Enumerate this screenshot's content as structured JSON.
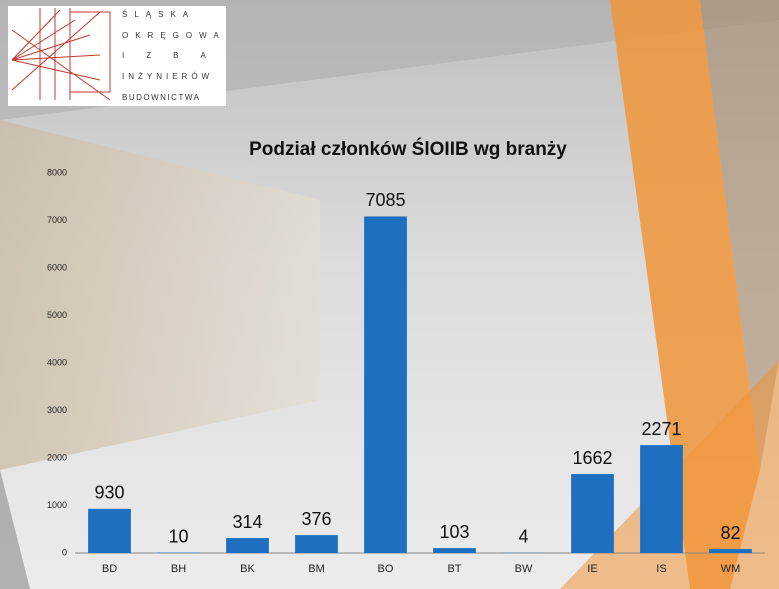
{
  "logo": {
    "lines": [
      "ŚLĄSKA",
      "OKRĘGOWA",
      "IZBA",
      "INŻYNIERÓW",
      "BUDOWNICTWA"
    ]
  },
  "chart_data": {
    "type": "bar",
    "title": "Podział członków ŚlOIIB wg branży",
    "categories": [
      "BD",
      "BH",
      "BK",
      "BM",
      "BO",
      "BT",
      "BW",
      "IE",
      "IS",
      "WM"
    ],
    "values": [
      930,
      10,
      314,
      376,
      7085,
      103,
      4,
      1662,
      2271,
      82
    ],
    "color": "#1f6fc0",
    "ylim": [
      0,
      8000
    ],
    "yticks": [
      0,
      1000,
      2000,
      3000,
      4000,
      5000,
      6000,
      7000,
      8000
    ],
    "grid": false
  }
}
